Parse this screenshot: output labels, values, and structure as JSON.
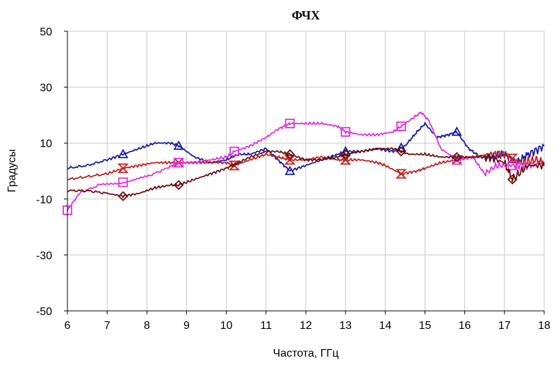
{
  "chart_data": {
    "type": "line",
    "title": "ФЧХ",
    "xlabel": "Частота, ГГц",
    "ylabel": "Градусы",
    "xlim": [
      6,
      18
    ],
    "ylim": [
      -50,
      50
    ],
    "x_ticks": [
      6,
      7,
      8,
      9,
      10,
      11,
      12,
      13,
      14,
      15,
      16,
      17,
      18
    ],
    "y_ticks": [
      50,
      30,
      10,
      -10,
      -30,
      -50
    ],
    "grid": true,
    "legend": "none",
    "series": [
      {
        "color": "#1a1aa8",
        "marker": "triangle",
        "x": [
          6.0,
          6.5,
          7.0,
          7.4,
          7.8,
          8.2,
          8.6,
          8.8,
          9.2,
          9.6,
          10.0,
          10.3,
          10.6,
          11.0,
          11.3,
          11.6,
          12.0,
          12.4,
          12.8,
          13.0,
          13.4,
          13.8,
          14.2,
          14.5,
          14.8,
          15.0,
          15.3,
          15.6,
          15.8,
          16.1,
          16.4,
          16.7,
          17.0,
          17.3,
          17.6,
          18.0
        ],
        "y": [
          1,
          2,
          4,
          6,
          8,
          10,
          10,
          9,
          5,
          3,
          4,
          6,
          6,
          8,
          4,
          0,
          2,
          4,
          6,
          7,
          7,
          8,
          7,
          9,
          14,
          17,
          12,
          13,
          14,
          8,
          5,
          5,
          6,
          3,
          6,
          9
        ],
        "marker_x": [
          7.4,
          8.8,
          11.6,
          13.0,
          14.4,
          15.8
        ]
      },
      {
        "color": "#c0201e",
        "marker": "hourglass",
        "x": [
          6.0,
          6.5,
          7.0,
          7.4,
          7.8,
          8.2,
          8.6,
          8.8,
          9.2,
          9.6,
          10.0,
          10.2,
          10.6,
          11.0,
          11.3,
          11.6,
          12.0,
          12.4,
          12.8,
          13.0,
          13.4,
          13.8,
          14.0,
          14.4,
          14.8,
          15.0,
          15.4,
          15.8,
          16.2,
          16.6,
          17.0,
          17.4,
          17.8,
          18.0
        ],
        "y": [
          -3,
          -2,
          -1,
          1,
          2,
          3,
          3,
          3,
          3,
          3,
          3,
          2,
          4,
          6,
          5,
          4,
          4,
          5,
          4,
          4,
          4,
          3,
          2,
          -1,
          0,
          1,
          3,
          4,
          5,
          6,
          6,
          3,
          4,
          3
        ],
        "marker_x": [
          7.4,
          8.8,
          10.2,
          11.6,
          13.0,
          14.4,
          15.8,
          17.2
        ]
      },
      {
        "color": "#e030e0",
        "marker": "square",
        "x": [
          6.0,
          6.3,
          6.8,
          7.4,
          8.0,
          8.5,
          8.8,
          9.2,
          9.6,
          10.0,
          10.2,
          10.6,
          11.0,
          11.3,
          11.6,
          12.0,
          12.4,
          12.8,
          13.0,
          13.4,
          13.8,
          14.2,
          14.4,
          14.7,
          14.9,
          15.1,
          15.4,
          15.8,
          16.2,
          16.5,
          16.8,
          17.2,
          17.6,
          18.0
        ],
        "y": [
          -14,
          -8,
          -5,
          -4,
          -2,
          1,
          3,
          3,
          4,
          5,
          7,
          9,
          12,
          15,
          17,
          17,
          17,
          16,
          14,
          13,
          13,
          14,
          16,
          19,
          21,
          18,
          8,
          4,
          5,
          -1,
          2,
          2,
          2,
          3
        ],
        "marker_x": [
          6.0,
          7.4,
          8.8,
          10.2,
          11.6,
          13.0,
          14.4,
          15.8,
          17.2
        ]
      },
      {
        "color": "#6b1010",
        "marker": "diamond",
        "x": [
          6.0,
          6.5,
          7.0,
          7.4,
          7.8,
          8.2,
          8.6,
          8.8,
          9.2,
          9.6,
          10.0,
          10.3,
          10.6,
          11.0,
          11.3,
          11.6,
          12.0,
          12.4,
          12.8,
          13.0,
          13.4,
          13.8,
          14.2,
          14.6,
          15.0,
          15.4,
          15.8,
          16.2,
          16.6,
          17.0,
          17.2,
          17.6,
          18.0
        ],
        "y": [
          -7,
          -7,
          -8,
          -9,
          -8,
          -6,
          -5,
          -5,
          -3,
          -1,
          1,
          3,
          5,
          7,
          7,
          6,
          4,
          4,
          5,
          6,
          7,
          8,
          8,
          6,
          6,
          5,
          5,
          5,
          5,
          3,
          -3,
          2,
          2
        ],
        "marker_x": [
          7.4,
          8.8,
          11.6,
          13.0,
          14.4,
          15.8,
          17.2
        ]
      }
    ]
  }
}
